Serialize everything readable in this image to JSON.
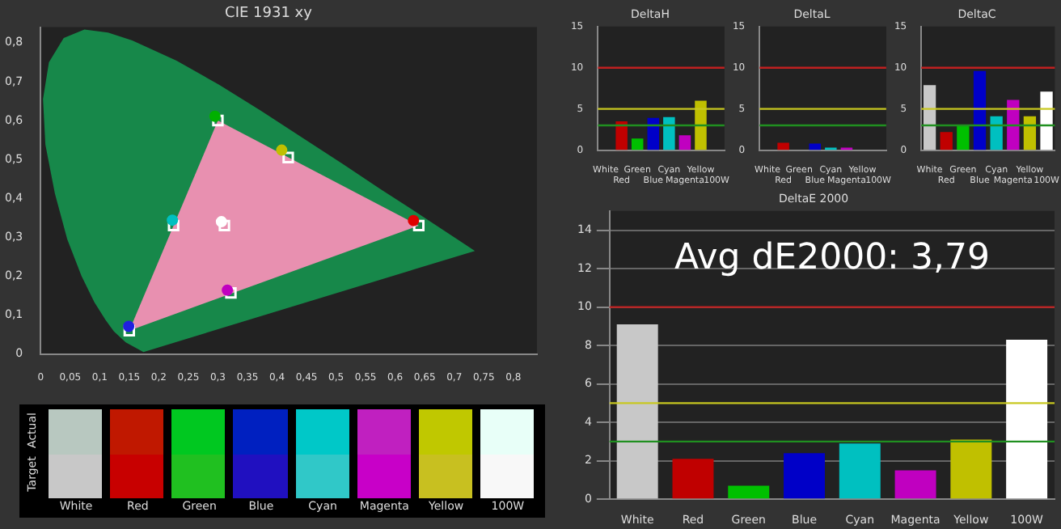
{
  "chart_data": [
    {
      "type": "scatter",
      "title": "CIE 1931 xy",
      "xlim": [
        0,
        0.84
      ],
      "ylim": [
        0,
        0.84
      ],
      "grid": false,
      "xticks": [
        0,
        {
          "value": 0.05,
          "label": "0,05"
        },
        {
          "value": 0.1,
          "label": "0,1"
        },
        {
          "value": 0.15,
          "label": "0,15"
        },
        {
          "value": 0.2,
          "label": "0,2"
        },
        {
          "value": 0.25,
          "label": "0,25"
        },
        {
          "value": 0.3,
          "label": "0,3"
        },
        {
          "value": 0.35,
          "label": "0,35"
        },
        {
          "value": 0.4,
          "label": "0,4"
        },
        {
          "value": 0.45,
          "label": "0,45"
        },
        {
          "value": 0.5,
          "label": "0,5"
        },
        {
          "value": 0.55,
          "label": "0,55"
        },
        {
          "value": 0.6,
          "label": "0,6"
        },
        {
          "value": 0.65,
          "label": "0,65"
        },
        {
          "value": 0.7,
          "label": "0,7"
        },
        {
          "value": 0.75,
          "label": "0,75"
        },
        {
          "value": 0.8,
          "label": "0,8"
        }
      ],
      "yticks": [
        0,
        {
          "value": 0.1,
          "label": "0,1"
        },
        {
          "value": 0.2,
          "label": "0,2"
        },
        {
          "value": 0.3,
          "label": "0,3"
        },
        {
          "value": 0.4,
          "label": "0,4"
        },
        {
          "value": 0.5,
          "label": "0,5"
        },
        {
          "value": 0.6,
          "label": "0,6"
        },
        {
          "value": 0.7,
          "label": "0,7"
        },
        {
          "value": 0.8,
          "label": "0,8"
        }
      ],
      "series": [
        {
          "type": "area",
          "color": "#17884a",
          "x": [
            0.174,
            0.144,
            0.124,
            0.11,
            0.091,
            0.069,
            0.045,
            0.024,
            0.008,
            0.004,
            0.014,
            0.039,
            0.074,
            0.114,
            0.155,
            0.23,
            0.302,
            0.373,
            0.444,
            0.513,
            0.575,
            0.627,
            0.692,
            0.719,
            0.735,
            0.174
          ],
          "values": [
            0.005,
            0.03,
            0.058,
            0.087,
            0.133,
            0.201,
            0.295,
            0.413,
            0.538,
            0.655,
            0.75,
            0.812,
            0.834,
            0.826,
            0.806,
            0.754,
            0.692,
            0.625,
            0.555,
            0.487,
            0.424,
            0.373,
            0.308,
            0.281,
            0.265,
            0.005
          ]
        },
        {
          "type": "area",
          "color": "#e890b0",
          "x": [
            0.64,
            0.3,
            0.15,
            0.64
          ],
          "values": [
            0.33,
            0.6,
            0.06,
            0.33
          ]
        },
        {
          "type": "scatter",
          "marker": "square",
          "color": "#ffffff",
          "x": [
            0.311,
            0.64,
            0.3,
            0.15,
            0.225,
            0.322,
            0.419
          ],
          "values": [
            0.33,
            0.33,
            0.6,
            0.06,
            0.33,
            0.157,
            0.505
          ]
        },
        {
          "type": "scatter",
          "marker": "circle",
          "colors": [
            "#ffffff",
            "#e00000",
            "#00b000",
            "#2020e0",
            "#00c0c0",
            "#c000c0",
            "#c0c000"
          ],
          "x": [
            0.306,
            0.631,
            0.295,
            0.149,
            0.223,
            0.316,
            0.408
          ],
          "values": [
            0.34,
            0.343,
            0.611,
            0.071,
            0.344,
            0.164,
            0.524
          ]
        }
      ]
    },
    {
      "type": "other",
      "categories": [
        "White",
        "Red",
        "Green",
        "Blue",
        "Cyan",
        "Magenta",
        "Yellow",
        "100W"
      ],
      "y_categories": [
        "Actual",
        "Target"
      ]
    },
    {
      "type": "bar",
      "title": "DeltaH",
      "categories": [
        "White",
        "Red",
        "Green",
        "Blue",
        "Cyan",
        "Magenta",
        "Yellow",
        "100W"
      ],
      "values": [
        0,
        3.5,
        1.4,
        3.9,
        4.0,
        1.8,
        6.0,
        0
      ],
      "colors": [
        "#c8c8c8",
        "#c00000",
        "#00c000",
        "#0000c8",
        "#00c0c0",
        "#c000c0",
        "#c0c000",
        "#ffffff"
      ],
      "ylim": [
        0,
        15
      ],
      "yticks": [
        0,
        5,
        10,
        15
      ],
      "grid": false,
      "ref_lines": [
        {
          "axis": "y",
          "value": 10,
          "color": "#c02020"
        },
        {
          "axis": "y",
          "value": 5,
          "color": "#c8c820"
        },
        {
          "axis": "y",
          "value": 3,
          "color": "#209020"
        }
      ]
    },
    {
      "type": "bar",
      "title": "DeltaL",
      "categories": [
        "White",
        "Red",
        "Green",
        "Blue",
        "Cyan",
        "Magenta",
        "Yellow",
        "100W"
      ],
      "values": [
        0,
        0.9,
        0,
        0.8,
        0.3,
        0.3,
        0,
        0
      ],
      "colors": [
        "#c8c8c8",
        "#c00000",
        "#00c000",
        "#0000c8",
        "#00c0c0",
        "#c000c0",
        "#c0c000",
        "#ffffff"
      ],
      "ylim": [
        0,
        15
      ],
      "yticks": [
        0,
        5,
        10,
        15
      ],
      "grid": false,
      "ref_lines": [
        {
          "axis": "y",
          "value": 10,
          "color": "#c02020"
        },
        {
          "axis": "y",
          "value": 5,
          "color": "#c8c820"
        },
        {
          "axis": "y",
          "value": 3,
          "color": "#209020"
        }
      ]
    },
    {
      "type": "bar",
      "title": "DeltaC",
      "categories": [
        "White",
        "Red",
        "Green",
        "Blue",
        "Cyan",
        "Magenta",
        "Yellow",
        "100W"
      ],
      "values": [
        7.9,
        2.2,
        3.1,
        9.6,
        4.1,
        6.1,
        4.1,
        7.1
      ],
      "colors": [
        "#c8c8c8",
        "#c00000",
        "#00c000",
        "#0000c8",
        "#00c0c0",
        "#c000c0",
        "#c0c000",
        "#ffffff"
      ],
      "ylim": [
        0,
        15
      ],
      "yticks": [
        0,
        5,
        10,
        15
      ],
      "grid": false,
      "ref_lines": [
        {
          "axis": "y",
          "value": 10,
          "color": "#c02020"
        },
        {
          "axis": "y",
          "value": 5,
          "color": "#c8c820"
        },
        {
          "axis": "y",
          "value": 3,
          "color": "#209020"
        }
      ]
    },
    {
      "type": "bar",
      "title": "DeltaE 2000",
      "categories": [
        "White",
        "Red",
        "Green",
        "Blue",
        "Cyan",
        "Magenta",
        "Yellow",
        "100W"
      ],
      "values": [
        9.1,
        2.1,
        0.7,
        2.4,
        2.9,
        1.5,
        3.1,
        8.3
      ],
      "colors": [
        "#c8c8c8",
        "#c00000",
        "#00c000",
        "#0000c8",
        "#00c0c0",
        "#c000c0",
        "#c0c000",
        "#ffffff"
      ],
      "ylim": [
        0,
        15
      ],
      "yticks": [
        0,
        2,
        4,
        6,
        8,
        10,
        12,
        14
      ],
      "grid": "y",
      "annotations": [
        "Avg dE2000: 3,79"
      ],
      "ref_lines": [
        {
          "axis": "y",
          "value": 10,
          "color": "#c02020"
        },
        {
          "axis": "y",
          "value": 5,
          "color": "#c8c820"
        },
        {
          "axis": "y",
          "value": 3,
          "color": "#209020"
        }
      ]
    }
  ]
}
